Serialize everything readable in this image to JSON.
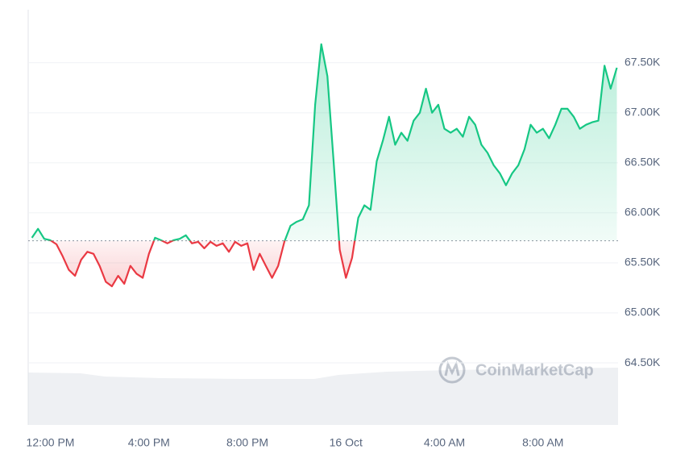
{
  "chart_data": {
    "type": "line",
    "x": [
      11.25,
      11.5,
      11.75,
      12,
      12.25,
      12.5,
      12.75,
      13,
      13.25,
      13.5,
      13.75,
      14,
      14.25,
      14.5,
      14.75,
      15,
      15.25,
      15.5,
      15.75,
      16,
      16.25,
      16.5,
      16.75,
      17,
      17.25,
      17.5,
      17.75,
      18,
      18.25,
      18.5,
      18.75,
      19,
      19.25,
      19.5,
      19.75,
      20,
      20.25,
      20.5,
      20.75,
      21,
      21.25,
      21.5,
      21.75,
      22,
      22.25,
      22.5,
      22.75,
      23,
      23.25,
      23.5,
      23.75,
      24,
      24.25,
      24.5,
      24.75,
      25,
      25.25,
      25.5,
      25.75,
      26,
      26.25,
      26.5,
      26.75,
      27,
      27.25,
      27.5,
      27.75,
      28,
      28.25,
      28.5,
      28.75,
      29,
      29.25,
      29.5,
      29.75,
      30,
      30.25,
      30.5,
      30.75,
      31,
      31.25,
      31.5,
      31.75,
      32,
      32.25,
      32.5,
      32.75,
      33,
      33.25,
      33.5,
      33.75,
      34,
      34.25,
      34.5,
      34.75,
      35
    ],
    "series": [
      {
        "up_color": "#16c784",
        "down_color": "#ea3943",
        "values": [
          65750,
          65840,
          65740,
          65725,
          65685,
          65565,
          65430,
          65370,
          65530,
          65610,
          65590,
          65470,
          65310,
          65265,
          65370,
          65290,
          65470,
          65390,
          65350,
          65590,
          65750,
          65725,
          65695,
          65725,
          65740,
          65775,
          65695,
          65710,
          65645,
          65710,
          65670,
          65695,
          65610,
          65710,
          65670,
          65695,
          65430,
          65590,
          65470,
          65350,
          65470,
          65710,
          65870,
          65910,
          65935,
          66075,
          67080,
          67685,
          67365,
          66515,
          65630,
          65350,
          65550,
          65950,
          66075,
          66030,
          66515,
          66720,
          66960,
          66680,
          66800,
          66720,
          66920,
          67000,
          67240,
          67000,
          67080,
          66840,
          66800,
          66840,
          66760,
          66960,
          66880,
          66680,
          66600,
          66475,
          66395,
          66275,
          66395,
          66475,
          66635,
          66880,
          66800,
          66840,
          66745,
          66880,
          67040,
          67040,
          66960,
          66840,
          66880,
          66905,
          66920,
          67470,
          67240,
          67450
        ]
      }
    ],
    "baseline": 65720,
    "xlim": [
      11.1,
      35.05
    ],
    "xticks": [
      {
        "value": 12,
        "label": "12:00 PM"
      },
      {
        "value": 16,
        "label": "4:00 PM"
      },
      {
        "value": 20,
        "label": "8:00 PM"
      },
      {
        "value": 24,
        "label": "16 Oct"
      },
      {
        "value": 28,
        "label": "4:00 AM"
      },
      {
        "value": 32,
        "label": "8:00 AM"
      }
    ],
    "ylim": [
      63880,
      68030
    ],
    "yticks": [
      {
        "value": 64500,
        "label": "64.50K"
      },
      {
        "value": 65000,
        "label": "65.00K"
      },
      {
        "value": 65500,
        "label": "65.50K"
      },
      {
        "value": 66000,
        "label": "66.00K"
      },
      {
        "value": 66500,
        "label": "66.50K"
      },
      {
        "value": 67000,
        "label": "67.00K"
      },
      {
        "value": 67500,
        "label": "67.50K"
      }
    ],
    "grid": true,
    "watermark": "CoinMarketCap"
  }
}
